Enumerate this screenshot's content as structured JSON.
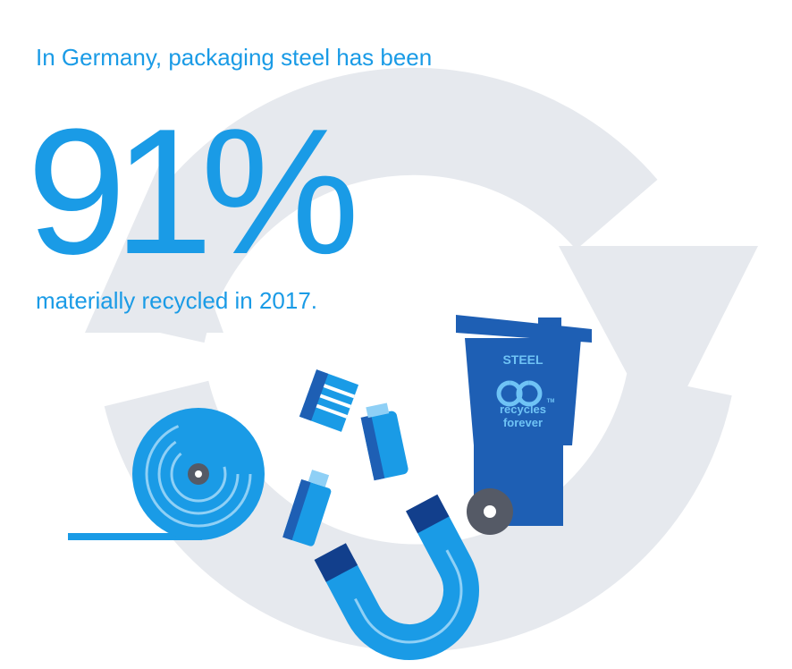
{
  "header": {
    "intro": "In Germany, packaging steel has been",
    "figure": "91%",
    "outro": "materially recycled in 2017."
  },
  "bin": {
    "label": "STEEL",
    "trademark": "TM",
    "slogan_line1": "recycles",
    "slogan_line2": "forever"
  }
}
